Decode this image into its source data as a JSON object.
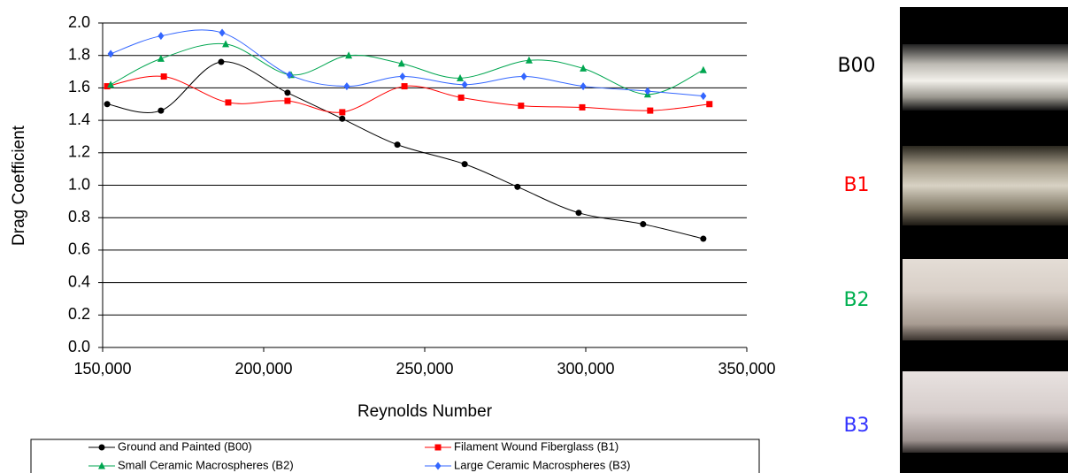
{
  "chart_data": {
    "type": "line",
    "xlabel": "Reynolds Number",
    "ylabel": "Drag Coefficient",
    "xlim": [
      150000,
      350000
    ],
    "xticks": [
      {
        "value": 150000,
        "label": "150,000"
      },
      {
        "value": 200000,
        "label": "200,000"
      },
      {
        "value": 250000,
        "label": "250,000"
      },
      {
        "value": 300000,
        "label": "300,000"
      },
      {
        "value": 350000,
        "label": "350,000"
      }
    ],
    "ylim": [
      0,
      2
    ],
    "yticks": [
      {
        "value": 0,
        "label": "0.0"
      },
      0.2,
      0.4,
      0.6,
      0.8,
      {
        "value": 1,
        "label": "1.0"
      },
      1.2,
      1.4,
      1.6,
      1.8,
      {
        "value": 2,
        "label": "2.0"
      }
    ],
    "grid": true,
    "smooth": true,
    "series": [
      {
        "name": "Ground and Painted (B00)",
        "color": "#000000",
        "marker": "circle",
        "x": [
          151400,
          168100,
          186800,
          207400,
          224400,
          241500,
          262400,
          278800,
          297800,
          317800,
          336500
        ],
        "values": [
          1.5,
          1.46,
          1.76,
          1.57,
          1.41,
          1.25,
          1.13,
          0.99,
          0.83,
          0.76,
          0.67
        ]
      },
      {
        "name": "Filament Wound Fiberglass (B1)",
        "color": "#ff0000",
        "marker": "square",
        "x": [
          151400,
          169000,
          189000,
          207400,
          224400,
          243700,
          261300,
          279900,
          298900,
          320000,
          338400
        ],
        "values": [
          1.61,
          1.67,
          1.51,
          1.52,
          1.45,
          1.61,
          1.54,
          1.49,
          1.48,
          1.46,
          1.5
        ]
      },
      {
        "name": "Small Ceramic Macrospheres (B2)",
        "color": "#00a650",
        "marker": "triangle",
        "x": [
          152500,
          168100,
          188200,
          208500,
          226400,
          242800,
          261000,
          282400,
          299200,
          319200,
          336500
        ],
        "values": [
          1.62,
          1.78,
          1.87,
          1.68,
          1.8,
          1.75,
          1.66,
          1.77,
          1.72,
          1.56,
          1.71
        ]
      },
      {
        "name": "Large Ceramic Macrospheres (B3)",
        "color": "#3366ff",
        "marker": "diamond",
        "x": [
          152500,
          168100,
          187100,
          208000,
          225800,
          243100,
          262400,
          280800,
          299200,
          319200,
          336500
        ],
        "values": [
          1.81,
          1.92,
          1.94,
          1.68,
          1.61,
          1.67,
          1.62,
          1.67,
          1.61,
          1.58,
          1.55
        ]
      }
    ]
  },
  "samples": [
    {
      "label": "B00",
      "color": "#000000"
    },
    {
      "label": "B1",
      "color": "#ff0000"
    },
    {
      "label": "B2",
      "color": "#00b050"
    },
    {
      "label": "B3",
      "color": "#3333ff"
    }
  ]
}
